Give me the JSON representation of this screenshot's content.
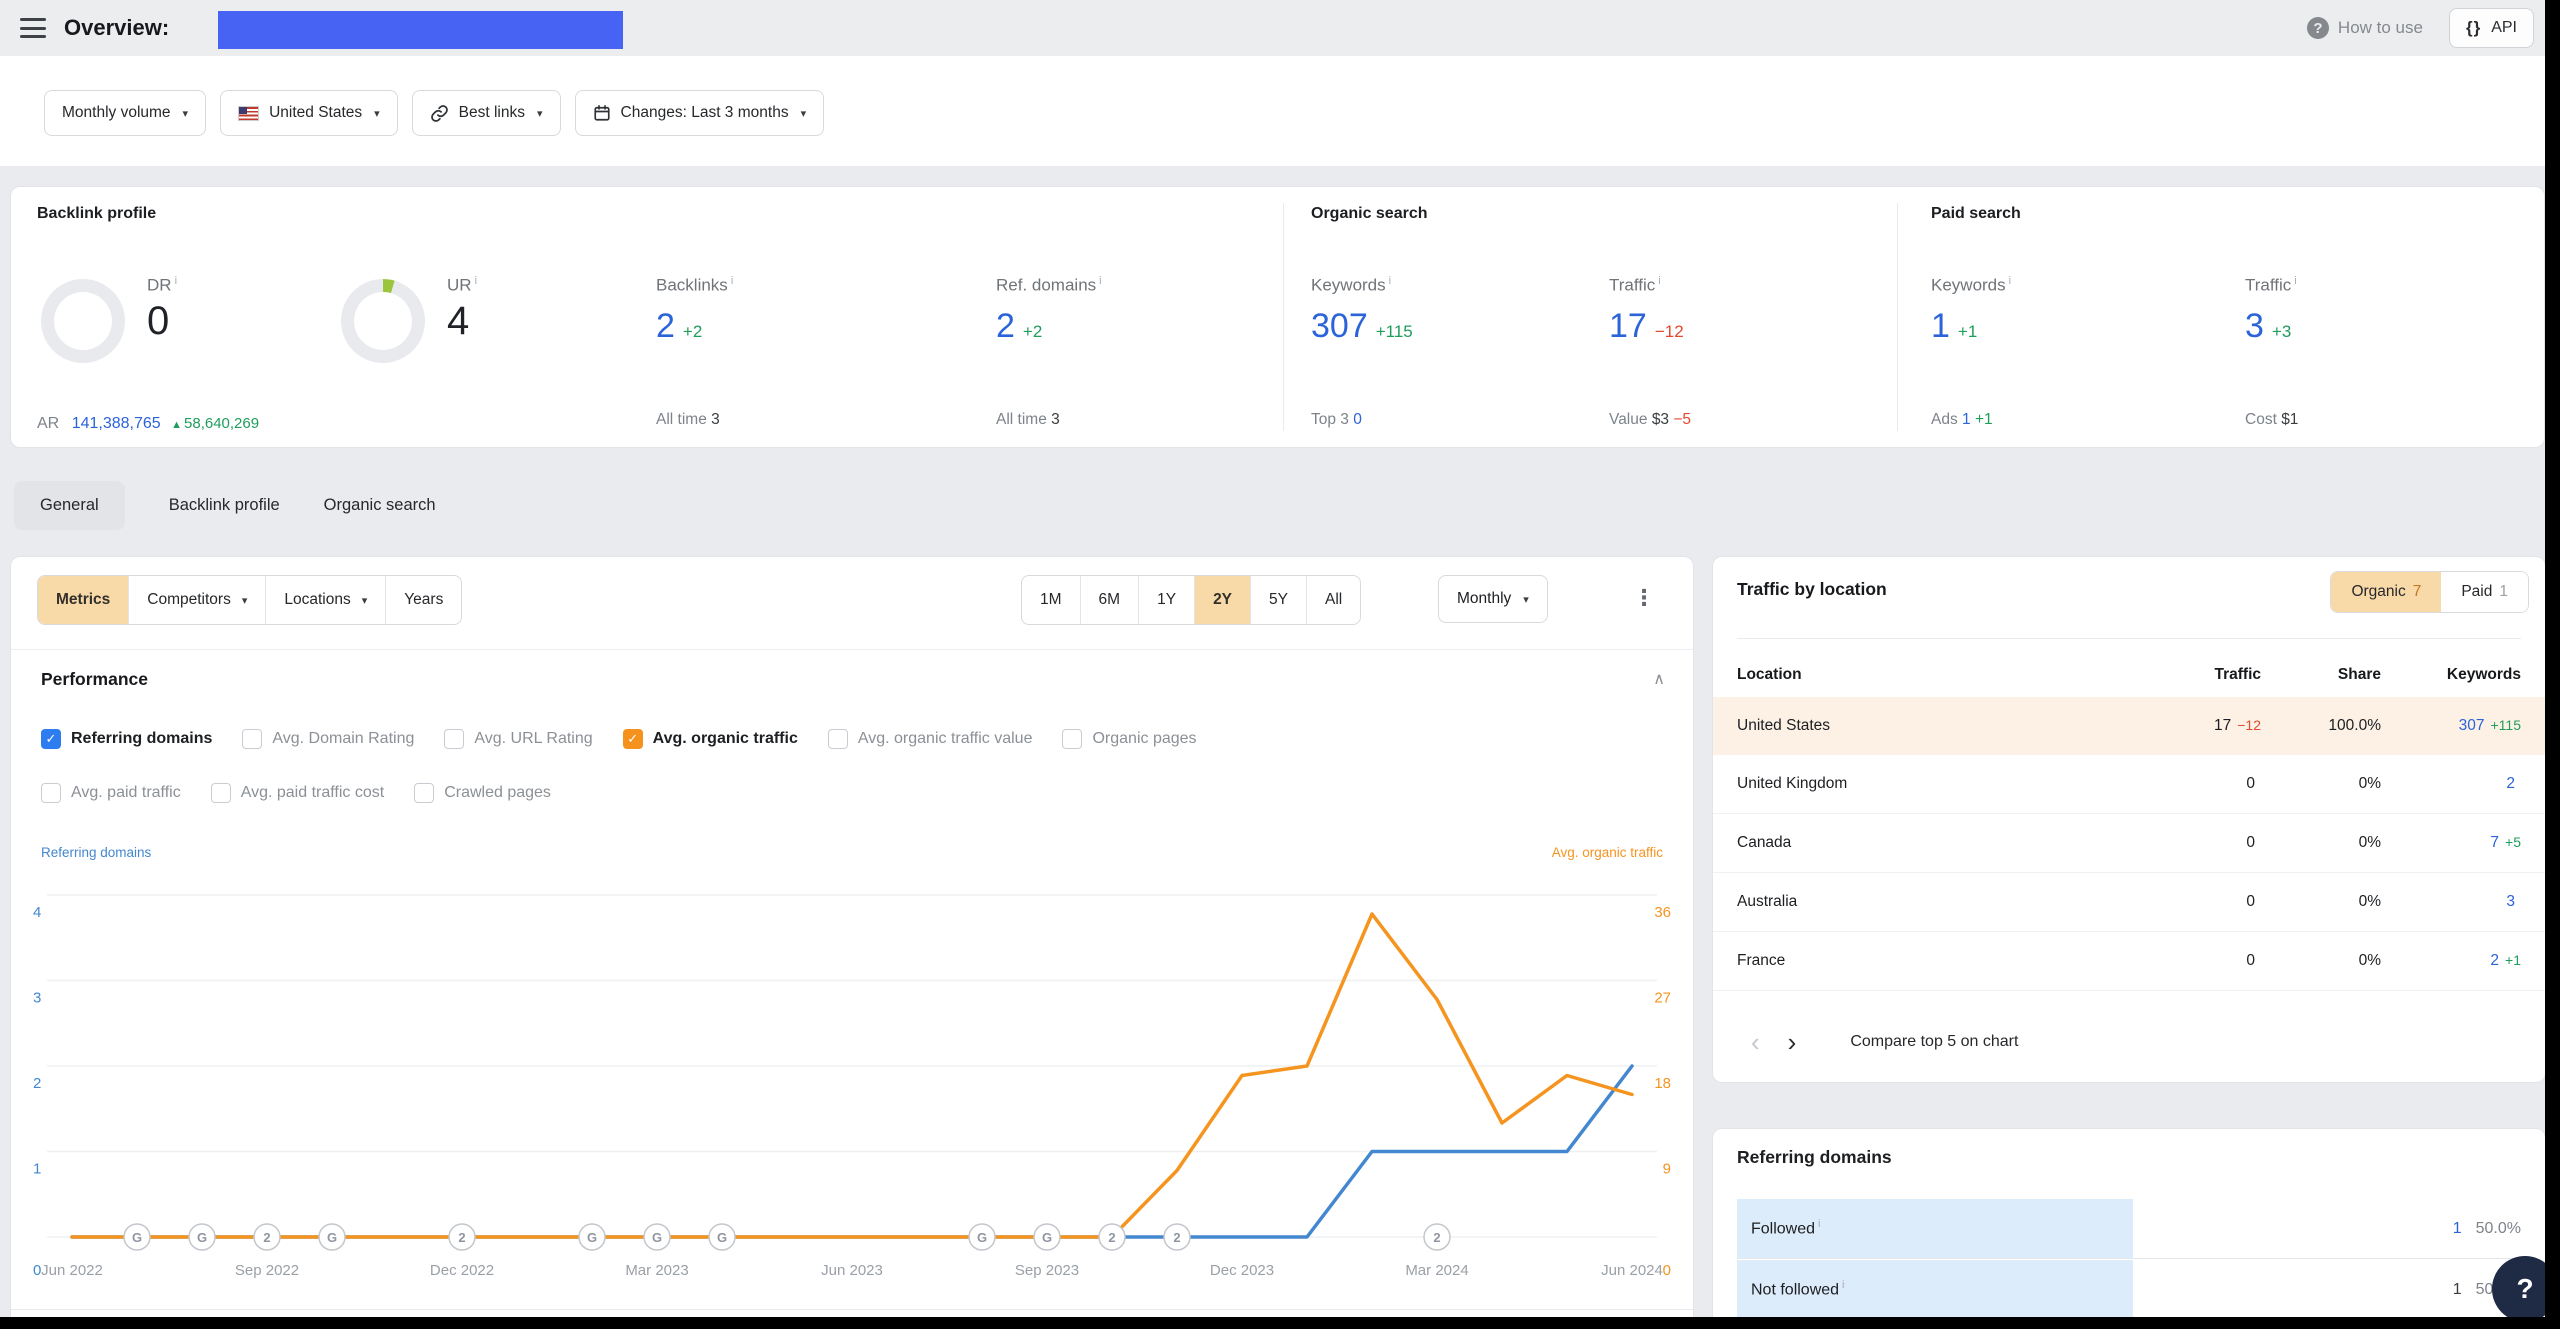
{
  "colors": {
    "redaction_blue": "#4763f3",
    "accent_blue": "#2b63d9",
    "green": "#1f9d5b",
    "red": "#e2492f",
    "orange": "#f5941f",
    "chart_blue": "#4287cf",
    "active_segment_bg": "#f8d9a8",
    "highlight_row": "#fdf1e6"
  },
  "icons": {
    "kebab": "⋮",
    "collapse": "∧",
    "prev": "‹",
    "next": "›",
    "check": "✓",
    "question": "?",
    "braces": "{}",
    "info": "i"
  },
  "topbar": {
    "title": "Overview:",
    "how_to_use": "How to use",
    "api_label": "API"
  },
  "filterbar": {
    "volume": "Monthly volume",
    "country": "United States",
    "links": "Best links",
    "changes": "Changes: Last 3 months"
  },
  "stats": {
    "backlink": {
      "heading": "Backlink profile",
      "dr_label": "DR",
      "dr_value": "0",
      "ur_label": "UR",
      "ur_value": "4",
      "backlinks_label": "Backlinks",
      "backlinks_value": "2",
      "backlinks_delta": "+2",
      "backlinks_sub_label": "All time",
      "backlinks_sub_value": "3",
      "refdomains_label": "Ref. domains",
      "refdomains_value": "2",
      "refdomains_delta": "+2",
      "refdomains_sub_label": "All time",
      "refdomains_sub_value": "3",
      "ar_label": "AR",
      "ar_value": "141,388,765",
      "ar_delta": "58,640,269"
    },
    "organic": {
      "heading": "Organic search",
      "keywords_label": "Keywords",
      "keywords_value": "307",
      "keywords_delta": "+115",
      "keywords_sub_label": "Top 3",
      "keywords_sub_value": "0",
      "traffic_label": "Traffic",
      "traffic_value": "17",
      "traffic_delta": "−12",
      "traffic_sub_label": "Value",
      "traffic_sub_value": "$3",
      "traffic_sub_delta": "−5"
    },
    "paid": {
      "heading": "Paid search",
      "keywords_label": "Keywords",
      "keywords_value": "1",
      "keywords_delta": "+1",
      "keywords_sub_label": "Ads",
      "keywords_sub_value": "1",
      "keywords_sub_delta": "+1",
      "traffic_label": "Traffic",
      "traffic_value": "3",
      "traffic_delta": "+3",
      "traffic_sub_label": "Cost",
      "traffic_sub_value": "$1"
    }
  },
  "tabs": [
    {
      "label": "General",
      "active": true
    },
    {
      "label": "Backlink profile",
      "active": false
    },
    {
      "label": "Organic search",
      "active": false
    }
  ],
  "toolbar": {
    "segments": [
      {
        "label": "Metrics",
        "active": true,
        "dropdown": false
      },
      {
        "label": "Competitors",
        "active": false,
        "dropdown": true
      },
      {
        "label": "Locations",
        "active": false,
        "dropdown": true
      },
      {
        "label": "Years",
        "active": false,
        "dropdown": false
      }
    ],
    "ranges": [
      {
        "label": "1M",
        "active": false
      },
      {
        "label": "6M",
        "active": false
      },
      {
        "label": "1Y",
        "active": false
      },
      {
        "label": "2Y",
        "active": true
      },
      {
        "label": "5Y",
        "active": false
      },
      {
        "label": "All",
        "active": false
      }
    ],
    "granularity": "Monthly"
  },
  "performance": {
    "title": "Performance",
    "checkboxes": [
      {
        "label": "Referring domains",
        "checked": true,
        "accent": "blue"
      },
      {
        "label": "Avg. Domain Rating",
        "checked": false
      },
      {
        "label": "Avg. URL Rating",
        "checked": false
      },
      {
        "label": "Avg. organic traffic",
        "checked": true,
        "accent": "orange"
      },
      {
        "label": "Avg. organic traffic value",
        "checked": false
      },
      {
        "label": "Organic pages",
        "checked": false
      },
      {
        "label": "Avg. paid traffic",
        "checked": false
      },
      {
        "label": "Avg. paid traffic cost",
        "checked": false
      },
      {
        "label": "Crawled pages",
        "checked": false
      }
    ]
  },
  "chart_data": {
    "type": "line",
    "months": [
      "Jun 2022",
      "Jul 2022",
      "Aug 2022",
      "Sep 2022",
      "Oct 2022",
      "Nov 2022",
      "Dec 2022",
      "Jan 2023",
      "Feb 2023",
      "Mar 2023",
      "Apr 2023",
      "May 2023",
      "Jun 2023",
      "Jul 2023",
      "Aug 2023",
      "Sep 2023",
      "Oct 2023",
      "Nov 2023",
      "Dec 2023",
      "Jan 2024",
      "Feb 2024",
      "Mar 2024",
      "Apr 2024",
      "May 2024",
      "Jun 2024"
    ],
    "tick_every": 3,
    "grid": true,
    "left_axis": {
      "label": "Referring domains",
      "color": "#4287cf",
      "min": 0,
      "max": 4,
      "ticks": [
        0,
        1,
        2,
        3,
        4
      ]
    },
    "right_axis": {
      "label": "Avg. organic traffic",
      "color": "#f5941f",
      "min": 0,
      "max": 36,
      "ticks": [
        0,
        9,
        18,
        27,
        36
      ]
    },
    "series": [
      {
        "name": "Referring domains",
        "axis": "left",
        "color": "#4287cf",
        "values": [
          0,
          0,
          0,
          0,
          0,
          0,
          0,
          0,
          0,
          0,
          0,
          0,
          0,
          0,
          0,
          0,
          0,
          0,
          0,
          0,
          1,
          1,
          1,
          1,
          2
        ]
      },
      {
        "name": "Avg. organic traffic",
        "axis": "right",
        "color": "#f5941f",
        "values": [
          0,
          0,
          0,
          0,
          0,
          0,
          0,
          0,
          0,
          0,
          0,
          0,
          0,
          0,
          0,
          0,
          0,
          7,
          17,
          18,
          34,
          25,
          12,
          17,
          15
        ]
      }
    ],
    "markers": [
      {
        "index": 1,
        "label": "G"
      },
      {
        "index": 2,
        "label": "G"
      },
      {
        "index": 3,
        "label": "2"
      },
      {
        "index": 4,
        "label": "G"
      },
      {
        "index": 6,
        "label": "2"
      },
      {
        "index": 8,
        "label": "G"
      },
      {
        "index": 9,
        "label": "G"
      },
      {
        "index": 10,
        "label": "G"
      },
      {
        "index": 14,
        "label": "G"
      },
      {
        "index": 15,
        "label": "G"
      },
      {
        "index": 16,
        "label": "2"
      },
      {
        "index": 17,
        "label": "2"
      },
      {
        "index": 21,
        "label": "2"
      }
    ]
  },
  "traffic_by_location": {
    "title": "Traffic by location",
    "toggle": {
      "organic_label": "Organic",
      "organic_count": "7",
      "paid_label": "Paid",
      "paid_count": "1"
    },
    "columns": {
      "location": "Location",
      "traffic": "Traffic",
      "share": "Share",
      "keywords": "Keywords"
    },
    "rows": [
      {
        "location": "United States",
        "traffic": "17",
        "traffic_delta": "−12",
        "share": "100.0%",
        "keywords": "307",
        "keywords_delta": "+115"
      },
      {
        "location": "United Kingdom",
        "traffic": "0",
        "share": "0%",
        "keywords": "2"
      },
      {
        "location": "Canada",
        "traffic": "0",
        "share": "0%",
        "keywords": "7",
        "keywords_delta": "+5"
      },
      {
        "location": "Australia",
        "traffic": "0",
        "share": "0%",
        "keywords": "3"
      },
      {
        "location": "France",
        "traffic": "0",
        "share": "0%",
        "keywords": "2",
        "keywords_delta": "+1"
      }
    ],
    "footer": "Compare top 5 on chart"
  },
  "referring_domains_panel": {
    "title": "Referring domains",
    "rows": [
      {
        "label": "Followed",
        "value": "1",
        "share": "50.0%"
      },
      {
        "label": "Not followed",
        "value": "1",
        "share": "50.0%"
      }
    ]
  }
}
